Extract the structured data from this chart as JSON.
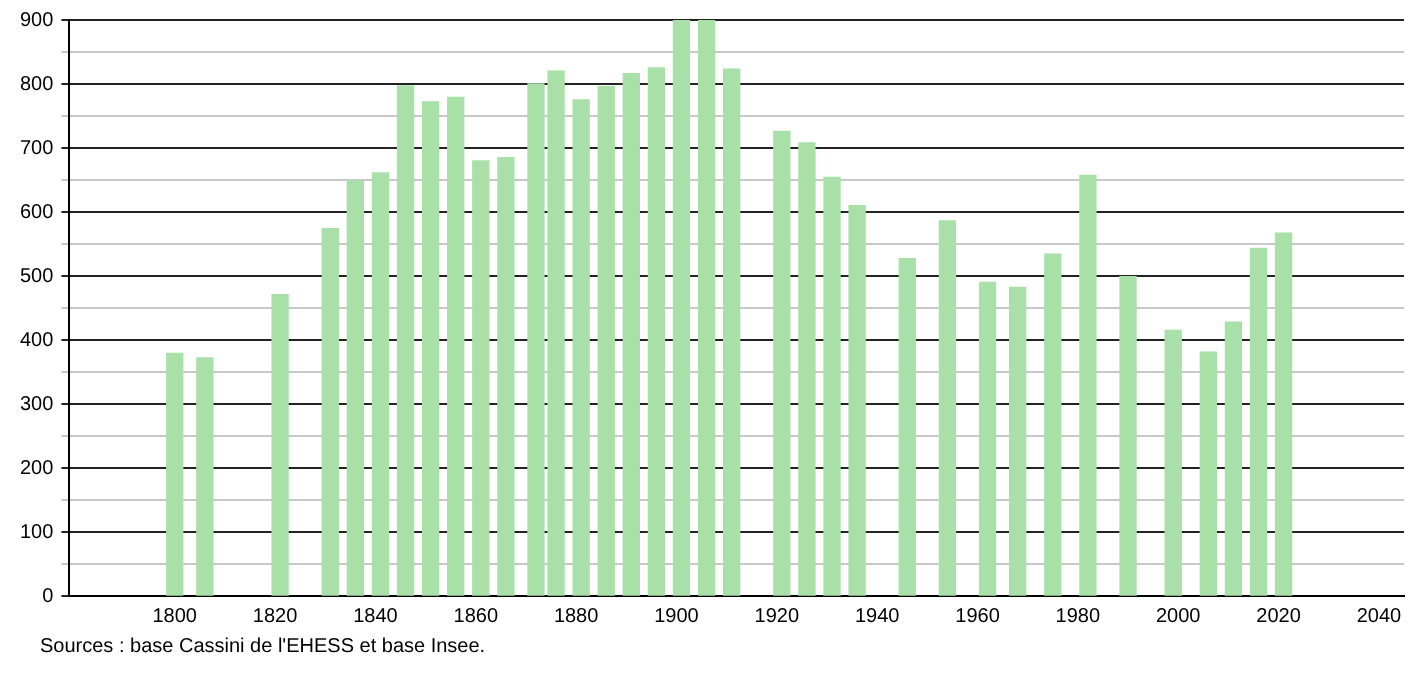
{
  "chart_data": {
    "type": "bar",
    "color": "#a8e0a8",
    "x": [
      1800,
      1806,
      1821,
      1831,
      1836,
      1841,
      1846,
      1851,
      1856,
      1861,
      1866,
      1872,
      1876,
      1881,
      1886,
      1891,
      1896,
      1901,
      1906,
      1911,
      1921,
      1926,
      1931,
      1936,
      1946,
      1954,
      1962,
      1968,
      1975,
      1982,
      1990,
      1999,
      2006,
      2011,
      2016,
      2021
    ],
    "values": [
      379,
      372,
      471,
      574,
      648,
      661,
      797,
      772,
      779,
      680,
      685,
      800,
      820,
      775,
      796,
      816,
      825,
      900,
      900,
      823,
      726,
      708,
      654,
      610,
      527,
      586,
      490,
      482,
      534,
      657,
      499,
      415,
      381,
      428,
      543,
      567
    ],
    "xlim": [
      1779,
      2045
    ],
    "xticks": [
      1800,
      1820,
      1840,
      1860,
      1880,
      1900,
      1920,
      1940,
      1960,
      1980,
      2000,
      2020,
      2040
    ],
    "ylim": [
      0,
      900
    ],
    "yticks": [
      0,
      {
        "value": 50,
        "label": null
      },
      100,
      {
        "value": 150,
        "label": null
      },
      200,
      {
        "value": 250,
        "label": null
      },
      300,
      {
        "value": 350,
        "label": null
      },
      400,
      {
        "value": 450,
        "label": null
      },
      500,
      {
        "value": 550,
        "label": null
      },
      600,
      {
        "value": 650,
        "label": null
      },
      700,
      {
        "value": 750,
        "label": null
      },
      800,
      {
        "value": 850,
        "label": null
      },
      900
    ],
    "grid": "y",
    "annotations": [
      "Sources : base Cassini de l'EHESS et base Insee."
    ]
  }
}
